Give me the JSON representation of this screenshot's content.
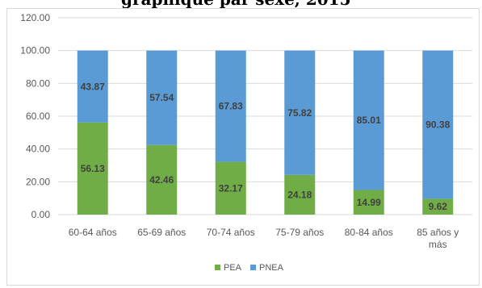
{
  "header": {
    "clipped_text": "graphique par sexe, 2015"
  },
  "chart_data": {
    "type": "bar",
    "stacked": true,
    "categories": [
      "60-64 años",
      "65-69 años",
      "70-74 años",
      "75-79 años",
      "80-84 años",
      "85 años y más"
    ],
    "series": [
      {
        "name": "PEA",
        "color": "#70ad47",
        "values": [
          56.13,
          42.46,
          32.17,
          24.18,
          14.99,
          9.62
        ],
        "labels": [
          "56.13",
          "42.46",
          "32.17",
          "24.18",
          "14.99",
          "9.62"
        ]
      },
      {
        "name": "PNEA",
        "color": "#5b9bd5",
        "values": [
          43.87,
          57.54,
          67.83,
          75.82,
          85.01,
          90.38
        ],
        "labels": [
          "43.87",
          "57.54",
          "67.83",
          "75.82",
          "85.01",
          "90.38"
        ]
      }
    ],
    "ylim": [
      0,
      120
    ],
    "yticks": [
      "0.00",
      "20.00",
      "40.00",
      "60.00",
      "80.00",
      "100.00",
      "120.00"
    ],
    "grid": true,
    "legend_position": "bottom"
  }
}
